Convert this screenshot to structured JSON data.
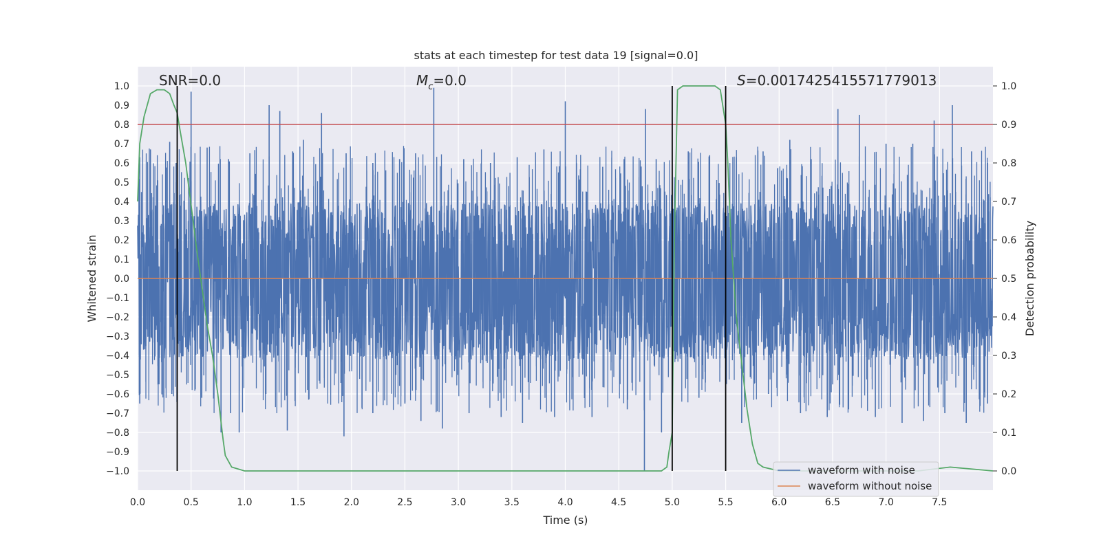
{
  "chart_data": {
    "type": "line",
    "title": "stats at each timestep for test data 19 [signal=0.0]",
    "xlabel": "Time (s)",
    "ylabel": "Whitened strain",
    "y2label": "Detection probability",
    "xlim": [
      0.0,
      8.0
    ],
    "ylim": [
      -1.1,
      1.1
    ],
    "y2lim": [
      -0.05,
      1.05
    ],
    "x_ticks": [
      "0.0",
      "0.5",
      "1.0",
      "1.5",
      "2.0",
      "2.5",
      "3.0",
      "3.5",
      "4.0",
      "4.5",
      "5.0",
      "5.5",
      "6.0",
      "6.5",
      "7.0",
      "7.5"
    ],
    "y_ticks": [
      "1.0",
      "0.9",
      "0.8",
      "0.7",
      "0.6",
      "0.5",
      "0.4",
      "0.3",
      "0.2",
      "0.1",
      "0.0",
      "−0.1",
      "−0.2",
      "−0.3",
      "−0.4",
      "−0.5",
      "−0.6",
      "−0.7",
      "−0.8",
      "−0.9",
      "−1.0"
    ],
    "y2_ticks": [
      "1.0",
      "0.9",
      "0.8",
      "0.7",
      "0.6",
      "0.5",
      "0.4",
      "0.3",
      "0.2",
      "0.1",
      "0.0"
    ],
    "grid": true,
    "legend_position": "lower-right",
    "annotations": {
      "snr": "SNR=0.0",
      "mc_symbol": "M",
      "mc_sub": "c",
      "mc_value": "=0.0",
      "s_symbol": "S",
      "s_value": "=0.0017425415571779013"
    },
    "threshold": {
      "axis": "right",
      "value": 0.9,
      "color": "#c44e52"
    },
    "vlines": [
      0.37,
      5.0,
      5.5
    ],
    "series": [
      {
        "name": "waveform with noise",
        "axis": "left",
        "color": "#4c72b0",
        "band": {
          "min": -0.42,
          "max": 0.39
        },
        "peaks_up": [
          [
            0.02,
            0.63
          ],
          [
            0.12,
            0.67
          ],
          [
            0.3,
            0.71
          ],
          [
            0.36,
            0.6
          ],
          [
            0.5,
            0.97
          ],
          [
            0.65,
            0.68
          ],
          [
            0.85,
            0.62
          ],
          [
            1.05,
            0.65
          ],
          [
            1.23,
            0.9
          ],
          [
            1.33,
            0.87
          ],
          [
            1.45,
            0.66
          ],
          [
            1.55,
            0.72
          ],
          [
            1.72,
            0.86
          ],
          [
            1.95,
            0.65
          ],
          [
            2.2,
            0.6
          ],
          [
            2.45,
            0.62
          ],
          [
            2.6,
            0.65
          ],
          [
            2.77,
            0.99
          ],
          [
            3.05,
            0.62
          ],
          [
            3.3,
            0.6
          ],
          [
            3.55,
            0.63
          ],
          [
            3.8,
            0.67
          ],
          [
            4.0,
            0.92
          ],
          [
            4.35,
            0.58
          ],
          [
            4.55,
            0.62
          ],
          [
            4.75,
            0.88
          ],
          [
            4.85,
            0.62
          ],
          [
            5.15,
            0.66
          ],
          [
            5.35,
            0.64
          ],
          [
            5.6,
            0.63
          ],
          [
            5.85,
            0.66
          ],
          [
            6.1,
            0.72
          ],
          [
            6.3,
            0.62
          ],
          [
            6.55,
            0.88
          ],
          [
            6.75,
            0.85
          ],
          [
            7.0,
            0.7
          ],
          [
            7.25,
            0.7
          ],
          [
            7.45,
            0.82
          ],
          [
            7.62,
            0.9
          ],
          [
            7.8,
            0.66
          ],
          [
            7.95,
            0.6
          ]
        ],
        "peaks_down": [
          [
            0.02,
            -0.65
          ],
          [
            0.2,
            -0.55
          ],
          [
            0.32,
            -0.6
          ],
          [
            0.6,
            -0.62
          ],
          [
            0.78,
            -0.8
          ],
          [
            0.87,
            -0.7
          ],
          [
            0.95,
            -0.8
          ],
          [
            1.2,
            -0.6
          ],
          [
            1.4,
            -0.79
          ],
          [
            1.6,
            -0.63
          ],
          [
            1.93,
            -0.82
          ],
          [
            2.2,
            -0.7
          ],
          [
            2.5,
            -0.65
          ],
          [
            2.65,
            -0.74
          ],
          [
            2.85,
            -0.78
          ],
          [
            3.1,
            -0.7
          ],
          [
            3.4,
            -0.72
          ],
          [
            3.6,
            -0.75
          ],
          [
            3.9,
            -0.72
          ],
          [
            4.25,
            -0.72
          ],
          [
            4.58,
            -0.68
          ],
          [
            4.74,
            -1.0
          ],
          [
            4.9,
            -0.8
          ],
          [
            5.25,
            -0.62
          ],
          [
            5.65,
            -0.75
          ],
          [
            5.9,
            -0.6
          ],
          [
            6.2,
            -0.7
          ],
          [
            6.45,
            -0.72
          ],
          [
            6.65,
            -0.68
          ],
          [
            6.9,
            -0.72
          ],
          [
            7.15,
            -0.75
          ],
          [
            7.35,
            -0.74
          ],
          [
            7.55,
            -0.7
          ],
          [
            7.75,
            -0.75
          ],
          [
            7.95,
            -0.65
          ]
        ]
      },
      {
        "name": "waveform without noise",
        "axis": "left",
        "color": "#dd8452",
        "x": [
          0.0,
          8.0
        ],
        "y": [
          0.0,
          0.0
        ]
      },
      {
        "axis": "right",
        "color": "#55a868",
        "x": [
          0.0,
          0.02,
          0.06,
          0.12,
          0.18,
          0.25,
          0.3,
          0.34,
          0.37,
          0.4,
          0.45,
          0.5,
          0.55,
          0.6,
          0.65,
          0.7,
          0.75,
          0.8,
          0.82,
          0.88,
          1.0,
          4.0,
          4.9,
          4.95,
          4.97,
          5.0,
          5.02,
          5.05,
          5.1,
          5.2,
          5.3,
          5.4,
          5.45,
          5.5,
          5.52,
          5.55,
          5.6,
          5.65,
          5.7,
          5.75,
          5.8,
          5.85,
          6.0,
          7.3,
          7.6,
          8.0
        ],
        "y": [
          0.7,
          0.85,
          0.92,
          0.98,
          0.99,
          0.99,
          0.98,
          0.95,
          0.93,
          0.88,
          0.8,
          0.69,
          0.58,
          0.48,
          0.38,
          0.3,
          0.2,
          0.08,
          0.04,
          0.01,
          0.0,
          0.0,
          0.0,
          0.01,
          0.05,
          0.1,
          0.6,
          0.99,
          1.0,
          1.0,
          1.0,
          1.0,
          0.99,
          0.9,
          0.8,
          0.6,
          0.4,
          0.28,
          0.16,
          0.07,
          0.02,
          0.01,
          0.0,
          0.0,
          0.01,
          0.0
        ]
      }
    ]
  }
}
